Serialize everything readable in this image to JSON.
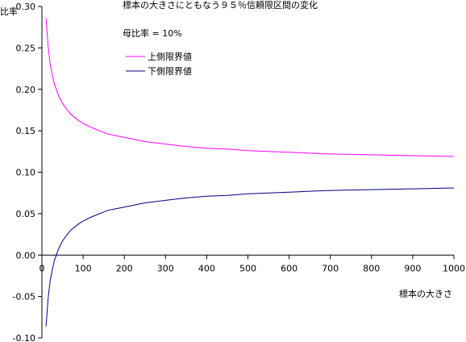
{
  "chart_data": {
    "type": "line",
    "title": "標本の大きさにともなう９５％信頼限区間の変化",
    "note": "母比率 = 10%",
    "xlabel": "標本の大きさ",
    "ylabel": "比率",
    "xlim": [
      0,
      1000
    ],
    "ylim": [
      -0.1,
      0.3
    ],
    "x_ticks": [
      "0",
      "100",
      "200",
      "300",
      "400",
      "500",
      "600",
      "700",
      "800",
      "900",
      "1000"
    ],
    "y_ticks": [
      "-0.10",
      "-0.05",
      "0.00",
      "0.05",
      "0.10",
      "0.15",
      "0.20",
      "0.25",
      "0.30"
    ],
    "grid": false,
    "legend_position": "top-left",
    "series": [
      {
        "name": "上側限界値",
        "color": "#ff00ff",
        "x": [
          10,
          15,
          20,
          25,
          30,
          40,
          50,
          60,
          70,
          80,
          90,
          100,
          120,
          140,
          160,
          180,
          200,
          250,
          300,
          350,
          400,
          450,
          500,
          600,
          700,
          800,
          900,
          1000
        ],
        "values": [
          0.286,
          0.252,
          0.231,
          0.218,
          0.207,
          0.193,
          0.183,
          0.176,
          0.17,
          0.166,
          0.162,
          0.159,
          0.154,
          0.15,
          0.146,
          0.144,
          0.142,
          0.137,
          0.134,
          0.131,
          0.129,
          0.128,
          0.126,
          0.124,
          0.122,
          0.121,
          0.12,
          0.119
        ]
      },
      {
        "name": "下側限界値",
        "color": "#000080",
        "x": [
          10,
          15,
          20,
          25,
          30,
          40,
          50,
          60,
          70,
          80,
          90,
          100,
          120,
          140,
          160,
          180,
          200,
          250,
          300,
          350,
          400,
          450,
          500,
          600,
          700,
          800,
          900,
          1000
        ],
        "values": [
          -0.086,
          -0.052,
          -0.031,
          -0.018,
          -0.007,
          0.007,
          0.017,
          0.024,
          0.03,
          0.034,
          0.038,
          0.041,
          0.046,
          0.05,
          0.054,
          0.056,
          0.058,
          0.063,
          0.066,
          0.069,
          0.071,
          0.072,
          0.074,
          0.076,
          0.078,
          0.079,
          0.08,
          0.081
        ]
      }
    ]
  }
}
